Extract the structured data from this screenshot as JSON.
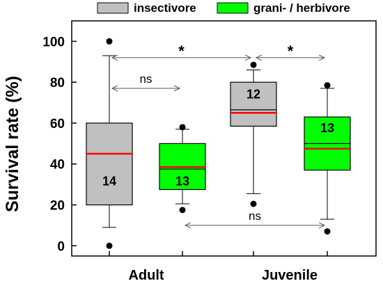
{
  "chart_data": {
    "type": "box",
    "ylabel": "Survival rate (%)",
    "ylim": [
      -5,
      110
    ],
    "yticks": [
      0,
      20,
      40,
      60,
      80,
      100
    ],
    "groups": [
      "Adult",
      "Juvenile"
    ],
    "legend": [
      {
        "name": "insectivore",
        "color": "#c0c0c0"
      },
      {
        "name": "grani- / herbivore",
        "color": "#00ff00"
      }
    ],
    "boxes": [
      {
        "group": "Adult",
        "series": "insectivore",
        "color": "#c0c0c0",
        "whisker_low": 9,
        "q1": 20,
        "median_black": 45,
        "mean_red": 45,
        "q3": 60,
        "whisker_high": 93,
        "outliers": [
          100,
          0
        ],
        "n": "14",
        "n_y": 32
      },
      {
        "group": "Adult",
        "series": "grani- / herbivore",
        "color": "#00ff00",
        "whisker_low": 20.5,
        "q1": 27.5,
        "median_black": 37.5,
        "mean_red": 38.5,
        "q3": 50,
        "whisker_high": 57,
        "outliers": [
          58,
          17.5
        ],
        "n": "13",
        "n_y": 32
      },
      {
        "group": "Juvenile",
        "series": "insectivore",
        "color": "#c0c0c0",
        "whisker_low": 25.5,
        "q1": 58.5,
        "median_black": 66.5,
        "mean_red": 65,
        "q3": 80,
        "whisker_high": 86,
        "outliers": [
          88.5,
          20.5
        ],
        "n": "12",
        "n_y": 74.5
      },
      {
        "group": "Juvenile",
        "series": "grani- / herbivore",
        "color": "#00ff00",
        "whisker_low": 13,
        "q1": 37,
        "median_black": 50,
        "mean_red": 47.5,
        "q3": 63,
        "whisker_high": 77,
        "outliers": [
          78.5,
          7
        ],
        "n": "13",
        "n_y": 58
      }
    ],
    "annotations": [
      {
        "from_box": 0,
        "to_box": 2,
        "y": 92,
        "label": "*"
      },
      {
        "from_box": 2,
        "to_box": 3,
        "y": 92,
        "label": "*"
      },
      {
        "from_box": 0,
        "to_box": 1,
        "y": 77,
        "label": "ns"
      },
      {
        "from_box": 1,
        "to_box": 3,
        "y": 10,
        "label": "ns"
      }
    ]
  }
}
